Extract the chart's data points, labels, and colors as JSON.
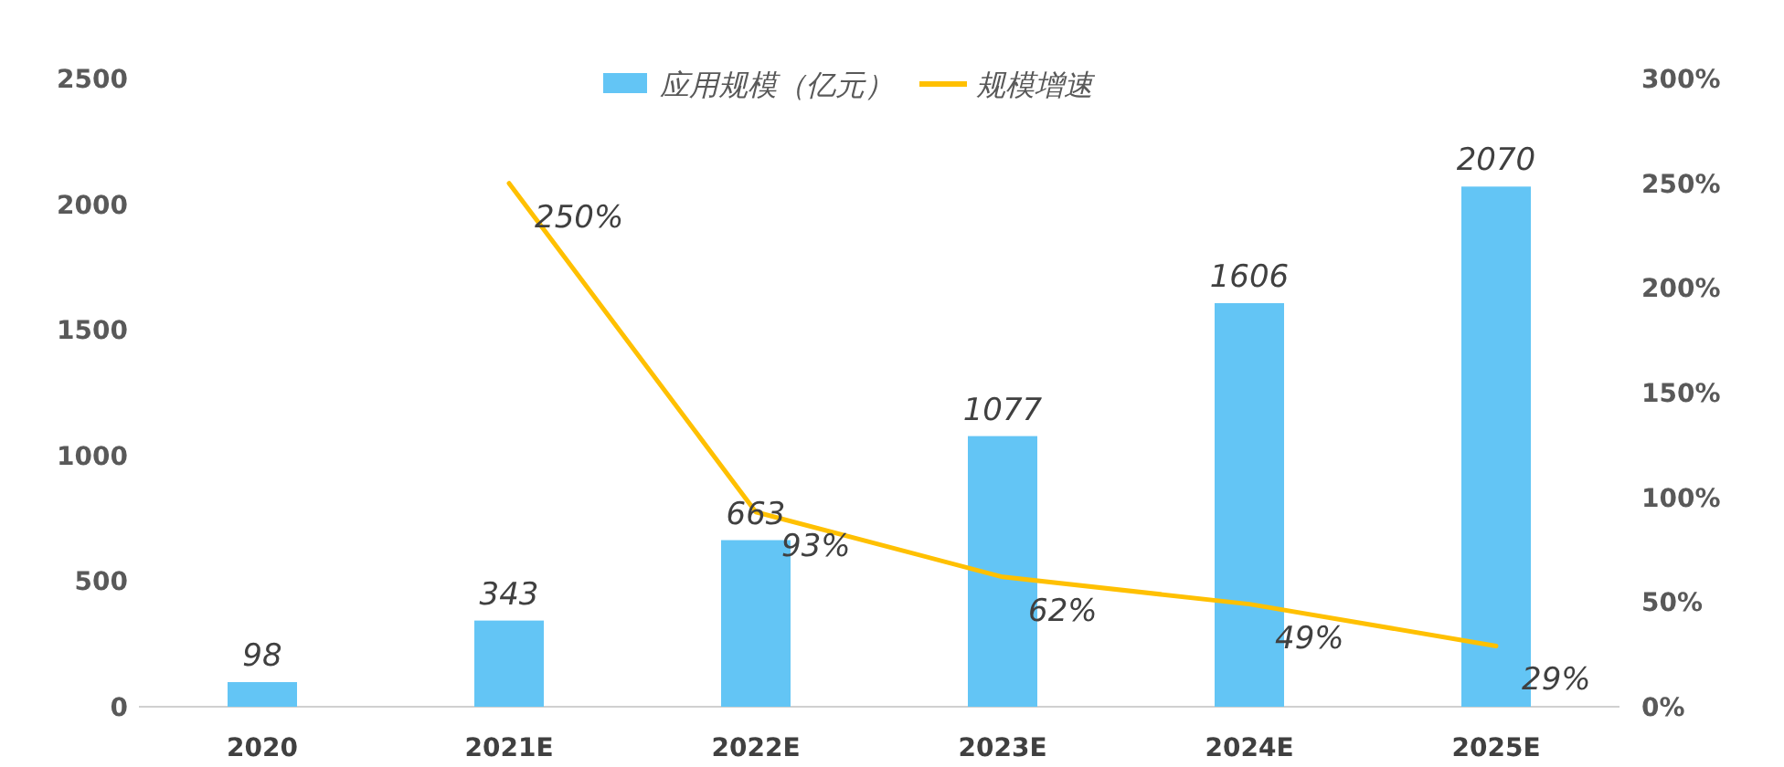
{
  "chart_data": {
    "type": "bar",
    "categories": [
      "2020",
      "2021E",
      "2022E",
      "2023E",
      "2024E",
      "2025E"
    ],
    "series": [
      {
        "name": "应用规模（亿元）",
        "color": "#63c5f5",
        "values": [
          98,
          343,
          663,
          1077,
          1606,
          2070
        ],
        "value_labels": [
          "98",
          "343",
          "663",
          "1077",
          "1606",
          "2070"
        ]
      },
      {
        "name": "规模增速",
        "type": "line",
        "axis": "y2",
        "color": "#ffc000",
        "values": [
          null,
          250,
          93,
          62,
          49,
          29
        ],
        "value_labels": [
          null,
          "250%",
          "93%",
          "62%",
          "49%",
          "29%"
        ]
      }
    ],
    "ylim": [
      0,
      2500
    ],
    "yticks": [
      0,
      500,
      1000,
      1500,
      2000,
      2500
    ],
    "y2lim": [
      0,
      300
    ],
    "y2ticks": [
      {
        "value": 0,
        "label": "0%"
      },
      {
        "value": 50,
        "label": "50%"
      },
      {
        "value": 100,
        "label": "100%"
      },
      {
        "value": 150,
        "label": "150%"
      },
      {
        "value": 200,
        "label": "200%"
      },
      {
        "value": 250,
        "label": "250%"
      },
      {
        "value": 300,
        "label": "300%"
      }
    ],
    "legend": "top",
    "marker": "none",
    "line_style": "solid"
  }
}
